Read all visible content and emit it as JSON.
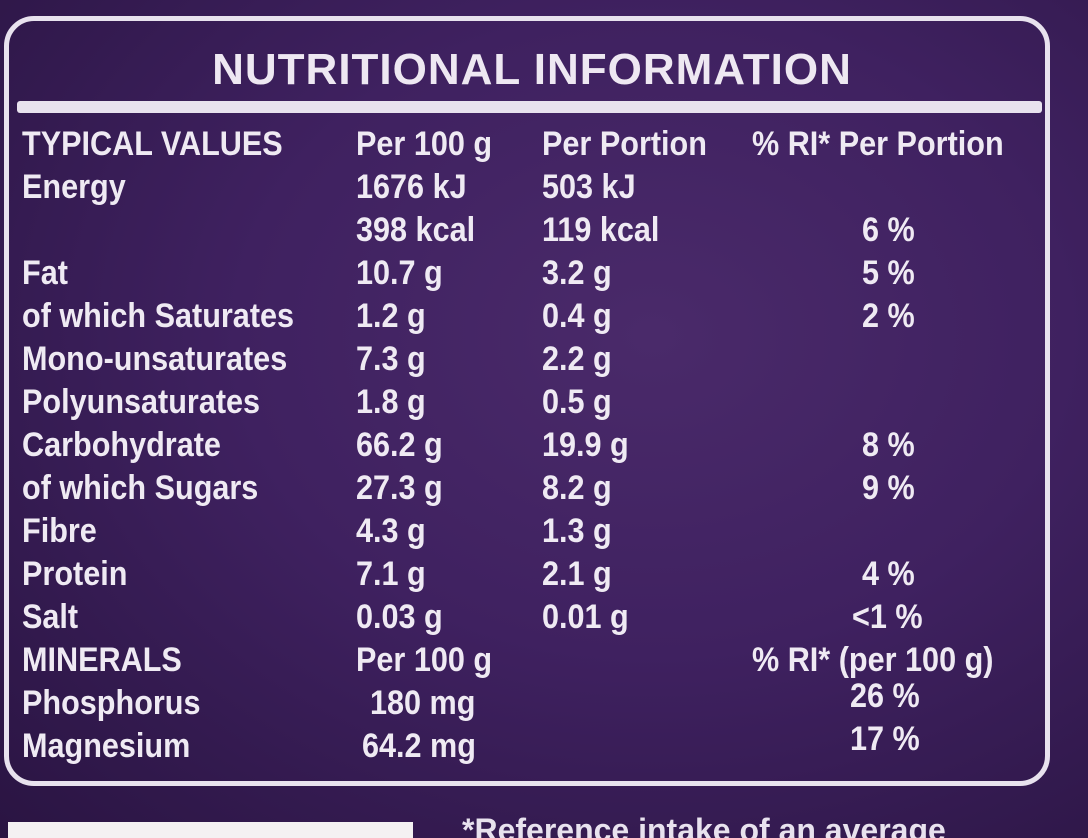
{
  "title": "NUTRITIONAL INFORMATION",
  "headers": {
    "label": "TYPICAL VALUES",
    "per100": "Per 100 g",
    "perPortion": "Per Portion",
    "ri": "% RI* Per Portion"
  },
  "rows": [
    {
      "label": "Energy",
      "per100": "1676 kJ",
      "perPortion": "503 kJ",
      "ri": ""
    },
    {
      "label": "",
      "per100": "398 kcal",
      "perPortion": "119 kcal",
      "ri": "6 %"
    },
    {
      "label": "Fat",
      "per100": "10.7 g",
      "perPortion": "3.2 g",
      "ri": "5 %"
    },
    {
      "label": "of which Saturates",
      "per100": "1.2 g",
      "perPortion": "0.4 g",
      "ri": "2 %"
    },
    {
      "label": "Mono-unsaturates",
      "per100": "7.3 g",
      "perPortion": "2.2 g",
      "ri": ""
    },
    {
      "label": "Polyunsaturates",
      "per100": "1.8 g",
      "perPortion": "0.5 g",
      "ri": ""
    },
    {
      "label": "Carbohydrate",
      "per100": "66.2 g",
      "perPortion": "19.9 g",
      "ri": "8 %"
    },
    {
      "label": "of which Sugars",
      "per100": "27.3 g",
      "perPortion": "8.2 g",
      "ri": "9 %"
    },
    {
      "label": "Fibre",
      "per100": "4.3 g",
      "perPortion": "1.3 g",
      "ri": ""
    },
    {
      "label": "Protein",
      "per100": "7.1 g",
      "perPortion": "2.1 g",
      "ri": "4 %"
    },
    {
      "label": "Salt",
      "per100": "0.03 g",
      "perPortion": "0.01 g",
      "ri": "<1 %"
    }
  ],
  "minerals": {
    "label": "MINERALS",
    "per100": "Per 100 g",
    "ri": "% RI* (per 100 g)",
    "rows": [
      {
        "label": "Phosphorus",
        "per100": "180 mg",
        "ri": "26 %"
      },
      {
        "label": "Magnesium",
        "per100": "64.2 mg",
        "ri": "17 %"
      }
    ]
  },
  "footnote": "*Reference intake of an average"
}
